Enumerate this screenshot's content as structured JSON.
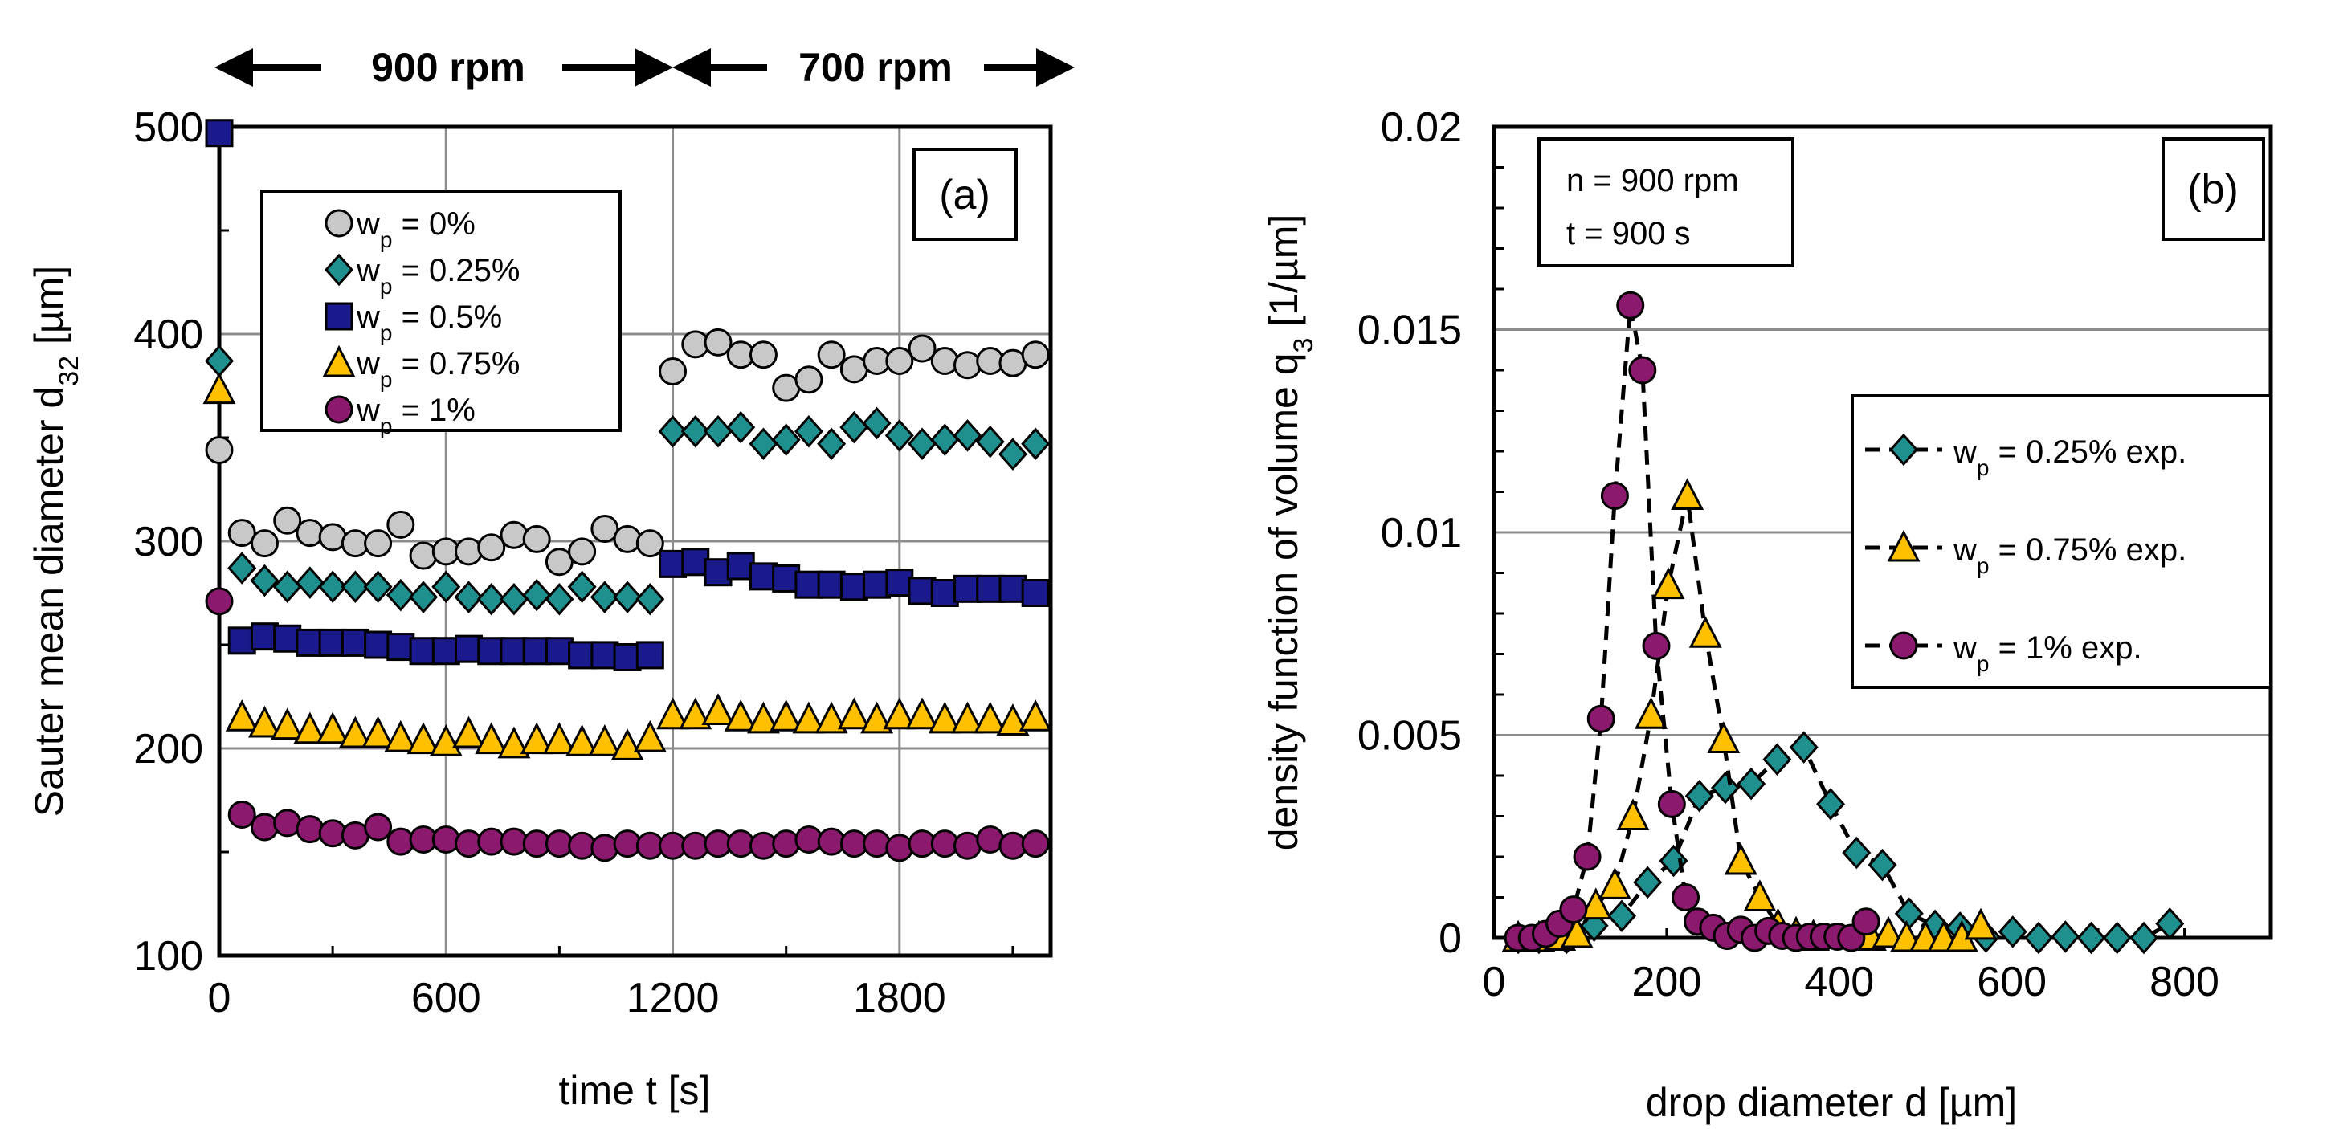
{
  "header": {
    "left_label": "900 rpm",
    "right_label": "700 rpm"
  },
  "chart_data": [
    {
      "type": "scatter",
      "panel_label": "(a)",
      "xlabel": "time t [s]",
      "ylabel": {
        "main": "Sauter mean diameter d",
        "sub": "32",
        "unit": " [µm]"
      },
      "xlim": [
        0,
        2200
      ],
      "ylim": [
        100,
        500
      ],
      "xticks": [
        0,
        600,
        1200,
        1800
      ],
      "yticks": [
        100,
        200,
        300,
        400,
        500
      ],
      "grid": true,
      "legend_position": "top-left",
      "x_phase0": [
        0
      ],
      "x_phase1": [
        60,
        120,
        180,
        240,
        300,
        360,
        420,
        480,
        540,
        600,
        660,
        720,
        780,
        840,
        900,
        960,
        1020,
        1080,
        1140
      ],
      "x_phase2": [
        1200,
        1260,
        1320,
        1380,
        1440,
        1500,
        1560,
        1620,
        1680,
        1740,
        1800,
        1860,
        1920,
        1980,
        2040,
        2100,
        2160
      ],
      "series": [
        {
          "name": {
            "sym": "w",
            "sub": "p",
            "rest": " = 0%"
          },
          "marker": "circle",
          "color": "#c8c8c8",
          "y0": [
            344
          ],
          "y1": [
            304,
            299,
            310,
            304,
            302,
            299,
            299,
            308,
            293,
            295,
            295,
            297,
            303,
            301,
            290,
            295,
            306,
            301,
            299
          ],
          "y2": [
            382,
            395,
            396,
            390,
            390,
            374,
            378,
            390,
            383,
            387,
            387,
            393,
            387,
            385,
            387,
            386,
            390
          ]
        },
        {
          "name": {
            "sym": "w",
            "sub": "p",
            "rest": " = 0.25%"
          },
          "marker": "diamond",
          "color": "#20908f",
          "y0": [
            387
          ],
          "y1": [
            287,
            281,
            278,
            280,
            278,
            278,
            278,
            274,
            273,
            278,
            273,
            272,
            272,
            274,
            272,
            278,
            273,
            273,
            272
          ],
          "y2": [
            353,
            353,
            353,
            355,
            347,
            349,
            353,
            347,
            355,
            357,
            351,
            347,
            349,
            351,
            348,
            342,
            347
          ]
        },
        {
          "name": {
            "sym": "w",
            "sub": "p",
            "rest": " = 0.5%"
          },
          "marker": "square",
          "color": "#1a1a8c",
          "y0": [
            497
          ],
          "y1": [
            252,
            254,
            253,
            251,
            251,
            251,
            250,
            249,
            247,
            247,
            248,
            247,
            247,
            247,
            247,
            245,
            245,
            244,
            245
          ],
          "y2": [
            289,
            290,
            285,
            288,
            283,
            282,
            279,
            279,
            278,
            279,
            280,
            276,
            275,
            277,
            277,
            277,
            275
          ]
        },
        {
          "name": {
            "sym": "w",
            "sub": "p",
            "rest": " = 0.75%"
          },
          "marker": "triangle",
          "color": "#ffc000",
          "y0": [
            373
          ],
          "y1": [
            215,
            212,
            211,
            209,
            209,
            207,
            207,
            205,
            204,
            203,
            207,
            204,
            202,
            204,
            204,
            203,
            203,
            201,
            205
          ],
          "y2": [
            216,
            216,
            218,
            215,
            214,
            215,
            214,
            214,
            216,
            214,
            216,
            216,
            214,
            214,
            214,
            213,
            215
          ]
        },
        {
          "name": {
            "sym": "w",
            "sub": "p",
            "rest": " = 1%"
          },
          "marker": "circle",
          "color": "#8b1a6e",
          "y0": [
            271
          ],
          "y1": [
            168,
            162,
            164,
            161,
            159,
            158,
            162,
            155,
            156,
            156,
            154,
            155,
            155,
            154,
            154,
            153,
            152,
            154,
            153
          ],
          "y2": [
            153,
            153,
            154,
            154,
            153,
            154,
            156,
            155,
            154,
            154,
            152,
            154,
            154,
            153,
            156,
            153,
            154
          ]
        }
      ]
    },
    {
      "type": "line",
      "panel_label": "(b)",
      "info": [
        "n = 900 rpm",
        "t = 900 s"
      ],
      "xlabel": "drop diameter d [µm]",
      "ylabel": {
        "main": "density function of volume q",
        "sub": "3",
        "unit": " [1/µm]"
      },
      "xlim": [
        0,
        900
      ],
      "ylim": [
        0,
        0.02
      ],
      "xticks": [
        0,
        200,
        400,
        600,
        800
      ],
      "yticks": [
        0,
        0.005,
        0.01,
        0.015,
        0.02
      ],
      "ytick_labels": [
        "0",
        "0.005",
        "0.01",
        "0.015",
        "0.02"
      ],
      "grid": true,
      "legend_position": "right",
      "series": [
        {
          "name": {
            "sym": "w",
            "sub": "p",
            "rest": "  =  0.25%  exp."
          },
          "marker": "diamond",
          "color": "#20908f",
          "line": "dashed",
          "x": [
            28,
            52,
            84,
            116,
            148,
            178,
            208,
            238,
            268,
            298,
            328,
            359,
            390,
            420,
            450,
            481,
            511,
            540,
            570,
            601,
            631,
            662,
            692,
            722,
            753,
            783
          ],
          "y": [
            0,
            0,
            0,
            0.0003,
            0.00054,
            0.00137,
            0.0019,
            0.0035,
            0.0037,
            0.0038,
            0.0044,
            0.0047,
            0.0033,
            0.0021,
            0.0018,
            0.0006,
            0.0003,
            0.00025,
            3e-05,
            0.00015,
            0,
            3e-05,
            0,
            0,
            0,
            0.00035
          ]
        },
        {
          "name": {
            "sym": "w",
            "sub": "p",
            "rest": "  =  0.75%  exp."
          },
          "marker": "triangle",
          "color": "#ffc000",
          "line": "dashed",
          "x": [
            28,
            52,
            76,
            96,
            118,
            140,
            161,
            182,
            202,
            224,
            245,
            266,
            286,
            308,
            329,
            350,
            370,
            436,
            457,
            478,
            500,
            521,
            542,
            564
          ],
          "y": [
            0,
            0,
            3e-05,
            0.0001,
            0.0008,
            0.0013,
            0.003,
            0.0055,
            0.0087,
            0.0109,
            0.0075,
            0.0049,
            0.0019,
            0.001,
            0.0003,
            0.0001,
            3e-05,
            3e-05,
            0.0001,
            0,
            0,
            0,
            0,
            0.0003
          ]
        },
        {
          "name": {
            "sym": "w",
            "sub": "p",
            "rest": " = 1%  exp."
          },
          "marker": "circle",
          "color": "#8b1a6e",
          "line": "dashed",
          "x": [
            28,
            44,
            60,
            76,
            92,
            108,
            124,
            140,
            158,
            172,
            188,
            206,
            222,
            236,
            254,
            270,
            286,
            302,
            318,
            334,
            350,
            366,
            382,
            398,
            414,
            431
          ],
          "y": [
            0,
            0,
            0.0001,
            0.00035,
            0.0007,
            0.002,
            0.0054,
            0.0109,
            0.0156,
            0.014,
            0.0072,
            0.0033,
            0.001,
            0.0004,
            0.00025,
            5e-05,
            0.0002,
            0,
            0.00017,
            5e-05,
            0,
            3e-05,
            3e-05,
            3e-05,
            0,
            0.0004
          ]
        }
      ]
    }
  ]
}
